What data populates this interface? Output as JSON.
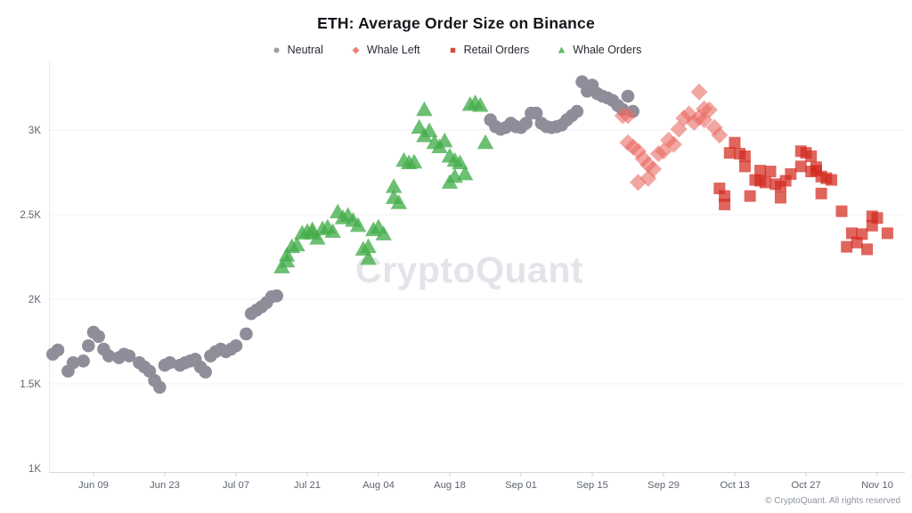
{
  "watermark": "CryptoQuant",
  "copyright": "© CryptoQuant. All rights reserved",
  "chart_data": {
    "type": "scatter",
    "title": "ETH: Average Order Size on Binance",
    "xlabel": "",
    "ylabel": "",
    "grid": "horizontal",
    "legend_position": "top",
    "ylim": [
      1000,
      3375
    ],
    "x_ticks": [
      "Jun 09",
      "Jun 23",
      "Jul 07",
      "Jul 21",
      "Aug 04",
      "Aug 18",
      "Sep 01",
      "Sep 15",
      "Sep 29",
      "Oct 13",
      "Oct 27",
      "Nov 10"
    ],
    "y_ticks": [
      {
        "label": "3K",
        "value": 3000
      },
      {
        "label": "2.5K",
        "value": 2500
      },
      {
        "label": "2K",
        "value": 2000
      },
      {
        "label": "1.5K",
        "value": 1500
      },
      {
        "label": "1K",
        "value": 1000
      }
    ],
    "series": [
      {
        "name": "Neutral",
        "marker": "circle",
        "color": "#8e8e9a",
        "points": [
          [
            "Jun 01",
            1675
          ],
          [
            "Jun 02",
            1700
          ],
          [
            "Jun 04",
            1575
          ],
          [
            "Jun 05",
            1625
          ],
          [
            "Jun 07",
            1635
          ],
          [
            "Jun 08",
            1725
          ],
          [
            "Jun 09",
            1805
          ],
          [
            "Jun 10",
            1780
          ],
          [
            "Jun 11",
            1705
          ],
          [
            "Jun 12",
            1665
          ],
          [
            "Jun 14",
            1655
          ],
          [
            "Jun 15",
            1675
          ],
          [
            "Jun 16",
            1665
          ],
          [
            "Jun 18",
            1625
          ],
          [
            "Jun 19",
            1600
          ],
          [
            "Jun 20",
            1575
          ],
          [
            "Jun 21",
            1520
          ],
          [
            "Jun 22",
            1480
          ],
          [
            "Jun 23",
            1610
          ],
          [
            "Jun 24",
            1625
          ],
          [
            "Jun 26",
            1610
          ],
          [
            "Jun 27",
            1625
          ],
          [
            "Jun 28",
            1635
          ],
          [
            "Jun 29",
            1645
          ],
          [
            "Jun 30",
            1600
          ],
          [
            "Jul 01",
            1570
          ],
          [
            "Jul 02",
            1665
          ],
          [
            "Jul 03",
            1690
          ],
          [
            "Jul 04",
            1705
          ],
          [
            "Jul 05",
            1690
          ],
          [
            "Jul 06",
            1705
          ],
          [
            "Jul 07",
            1725
          ],
          [
            "Jul 09",
            1795
          ],
          [
            "Jul 10",
            1915
          ],
          [
            "Jul 11",
            1935
          ],
          [
            "Jul 12",
            1955
          ],
          [
            "Jul 13",
            1980
          ],
          [
            "Jul 14",
            2015
          ],
          [
            "Jul 15",
            2020
          ],
          [
            "Aug 26",
            3060
          ],
          [
            "Aug 27",
            3020
          ],
          [
            "Aug 28",
            3005
          ],
          [
            "Aug 29",
            3015
          ],
          [
            "Aug 30",
            3040
          ],
          [
            "Aug 31",
            3020
          ],
          [
            "Sep 01",
            3015
          ],
          [
            "Sep 02",
            3040
          ],
          [
            "Sep 03",
            3100
          ],
          [
            "Sep 04",
            3100
          ],
          [
            "Sep 05",
            3040
          ],
          [
            "Sep 06",
            3020
          ],
          [
            "Sep 07",
            3015
          ],
          [
            "Sep 08",
            3020
          ],
          [
            "Sep 09",
            3030
          ],
          [
            "Sep 10",
            3060
          ],
          [
            "Sep 11",
            3085
          ],
          [
            "Sep 12",
            3110
          ],
          [
            "Sep 13",
            3285
          ],
          [
            "Sep 14",
            3230
          ],
          [
            "Sep 15",
            3265
          ],
          [
            "Sep 16",
            3215
          ],
          [
            "Sep 17",
            3200
          ],
          [
            "Sep 18",
            3190
          ],
          [
            "Sep 19",
            3175
          ],
          [
            "Sep 20",
            3145
          ],
          [
            "Sep 21",
            3120
          ],
          [
            "Sep 22",
            3200
          ],
          [
            "Sep 23",
            3110
          ]
        ]
      },
      {
        "name": "Whale Left",
        "marker": "diamond",
        "color": "#e96a62",
        "points": [
          [
            "Sep 21",
            3085
          ],
          [
            "Sep 22",
            3085
          ],
          [
            "Sep 22",
            2925
          ],
          [
            "Sep 23",
            2900
          ],
          [
            "Sep 24",
            2875
          ],
          [
            "Sep 24",
            2690
          ],
          [
            "Sep 25",
            2830
          ],
          [
            "Sep 26",
            2715
          ],
          [
            "Sep 26",
            2795
          ],
          [
            "Sep 27",
            2770
          ],
          [
            "Sep 28",
            2860
          ],
          [
            "Sep 29",
            2875
          ],
          [
            "Sep 30",
            2940
          ],
          [
            "Oct 01",
            2915
          ],
          [
            "Oct 02",
            3005
          ],
          [
            "Oct 03",
            3070
          ],
          [
            "Oct 04",
            3095
          ],
          [
            "Oct 05",
            3045
          ],
          [
            "Oct 06",
            3075
          ],
          [
            "Oct 06",
            3225
          ],
          [
            "Oct 07",
            3125
          ],
          [
            "Oct 07",
            3060
          ],
          [
            "Oct 08",
            3120
          ],
          [
            "Oct 09",
            3015
          ],
          [
            "Oct 10",
            2970
          ]
        ]
      },
      {
        "name": "Retail Orders",
        "marker": "square",
        "color": "#d22a1e",
        "points": [
          [
            "Oct 10",
            2655
          ],
          [
            "Oct 11",
            2560
          ],
          [
            "Oct 11",
            2610
          ],
          [
            "Oct 12",
            2865
          ],
          [
            "Oct 13",
            2925
          ],
          [
            "Oct 14",
            2860
          ],
          [
            "Oct 15",
            2785
          ],
          [
            "Oct 15",
            2845
          ],
          [
            "Oct 16",
            2610
          ],
          [
            "Oct 17",
            2705
          ],
          [
            "Oct 18",
            2760
          ],
          [
            "Oct 18",
            2700
          ],
          [
            "Oct 19",
            2690
          ],
          [
            "Oct 20",
            2755
          ],
          [
            "Oct 21",
            2680
          ],
          [
            "Oct 22",
            2600
          ],
          [
            "Oct 22",
            2665
          ],
          [
            "Oct 23",
            2700
          ],
          [
            "Oct 24",
            2740
          ],
          [
            "Oct 26",
            2875
          ],
          [
            "Oct 26",
            2785
          ],
          [
            "Oct 27",
            2865
          ],
          [
            "Oct 28",
            2845
          ],
          [
            "Oct 28",
            2755
          ],
          [
            "Oct 29",
            2780
          ],
          [
            "Oct 29",
            2760
          ],
          [
            "Oct 30",
            2725
          ],
          [
            "Oct 30",
            2625
          ],
          [
            "Oct 31",
            2715
          ],
          [
            "Nov 01",
            2705
          ],
          [
            "Nov 03",
            2520
          ],
          [
            "Nov 04",
            2310
          ],
          [
            "Nov 05",
            2390
          ],
          [
            "Nov 06",
            2335
          ],
          [
            "Nov 07",
            2385
          ],
          [
            "Nov 08",
            2295
          ],
          [
            "Nov 09",
            2435
          ],
          [
            "Nov 09",
            2490
          ],
          [
            "Nov 10",
            2480
          ],
          [
            "Nov 12",
            2390
          ]
        ]
      },
      {
        "name": "Whale Orders",
        "marker": "triangle",
        "color": "#44ad4a",
        "points": [
          [
            "Jul 16",
            2190
          ],
          [
            "Jul 17",
            2225
          ],
          [
            "Jul 17",
            2260
          ],
          [
            "Jul 18",
            2310
          ],
          [
            "Jul 19",
            2320
          ],
          [
            "Jul 20",
            2390
          ],
          [
            "Jul 21",
            2400
          ],
          [
            "Jul 22",
            2410
          ],
          [
            "Jul 22",
            2390
          ],
          [
            "Jul 23",
            2360
          ],
          [
            "Jul 24",
            2415
          ],
          [
            "Jul 25",
            2425
          ],
          [
            "Jul 26",
            2400
          ],
          [
            "Jul 27",
            2515
          ],
          [
            "Jul 28",
            2480
          ],
          [
            "Jul 29",
            2495
          ],
          [
            "Jul 30",
            2465
          ],
          [
            "Jul 31",
            2435
          ],
          [
            "Aug 01",
            2295
          ],
          [
            "Aug 02",
            2240
          ],
          [
            "Aug 02",
            2310
          ],
          [
            "Aug 03",
            2410
          ],
          [
            "Aug 04",
            2425
          ],
          [
            "Aug 05",
            2385
          ],
          [
            "Aug 07",
            2600
          ],
          [
            "Aug 07",
            2665
          ],
          [
            "Aug 08",
            2570
          ],
          [
            "Aug 09",
            2820
          ],
          [
            "Aug 10",
            2805
          ],
          [
            "Aug 11",
            2810
          ],
          [
            "Aug 12",
            3015
          ],
          [
            "Aug 13",
            3120
          ],
          [
            "Aug 13",
            2965
          ],
          [
            "Aug 14",
            2995
          ],
          [
            "Aug 15",
            2925
          ],
          [
            "Aug 16",
            2900
          ],
          [
            "Aug 17",
            2935
          ],
          [
            "Aug 18",
            2845
          ],
          [
            "Aug 18",
            2690
          ],
          [
            "Aug 19",
            2820
          ],
          [
            "Aug 19",
            2725
          ],
          [
            "Aug 20",
            2805
          ],
          [
            "Aug 21",
            2740
          ],
          [
            "Aug 22",
            3150
          ],
          [
            "Aug 23",
            3160
          ],
          [
            "Aug 24",
            3145
          ],
          [
            "Aug 25",
            2925
          ]
        ]
      }
    ]
  }
}
